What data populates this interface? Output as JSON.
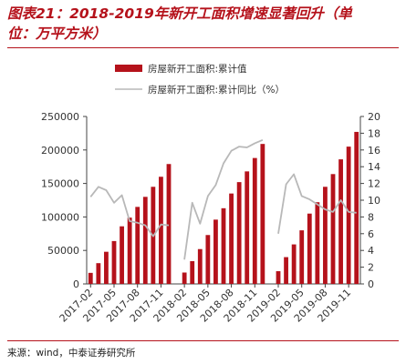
{
  "header": {
    "title_line1": "图表21：2018-2019年新开工面积增速显著回升（单",
    "title_line2": "位：万平方米）"
  },
  "footer": {
    "source": "来源：wind，中泰证券研究所"
  },
  "colors": {
    "bar": "#b5121b",
    "line": "#b8b8b8",
    "title": "#b5121b",
    "axis": "#444444"
  },
  "chart_data": {
    "type": "bar",
    "legend": [
      {
        "name": "房屋新开工面积:累计值",
        "style": "bar"
      },
      {
        "name": "房屋新开工面积:累计同比（%）",
        "style": "line"
      }
    ],
    "legend_placement": "top",
    "x_tick_labels": [
      "2017-02",
      "2017-05",
      "2017-08",
      "2017-11",
      "2018-02",
      "2018-05",
      "2018-08",
      "2018-11",
      "2019-02",
      "2019-05",
      "2019-08",
      "2019-11"
    ],
    "x": [
      "2017-02",
      "2017-03",
      "2017-04",
      "2017-05",
      "2017-06",
      "2017-07",
      "2017-08",
      "2017-09",
      "2017-10",
      "2017-11",
      "2017-12",
      "2018-01",
      "2018-02",
      "2018-03",
      "2018-04",
      "2018-05",
      "2018-06",
      "2018-07",
      "2018-08",
      "2018-09",
      "2018-10",
      "2018-11",
      "2018-12",
      "2019-01",
      "2019-02",
      "2019-03",
      "2019-04",
      "2019-05",
      "2019-06",
      "2019-07",
      "2019-08",
      "2019-09",
      "2019-10",
      "2019-11",
      "2019-12"
    ],
    "series": [
      {
        "name": "房屋新开工面积:累计值",
        "type": "bar",
        "axis": "left",
        "values": [
          16500,
          31000,
          48000,
          64000,
          86000,
          99000,
          115000,
          130000,
          145000,
          160000,
          179000,
          null,
          17000,
          34000,
          52000,
          73000,
          96000,
          113000,
          135000,
          152000,
          168000,
          188000,
          209000,
          null,
          19000,
          40000,
          59000,
          80000,
          105000,
          122000,
          145000,
          164000,
          186000,
          205000,
          227000
        ]
      },
      {
        "name": "房屋新开工面积:累计同比（%）",
        "type": "line",
        "axis": "right",
        "values": [
          10.4,
          11.6,
          11.2,
          9.7,
          10.6,
          7.5,
          7.3,
          7.0,
          5.7,
          7.1,
          7.0,
          null,
          2.9,
          9.7,
          7.2,
          10.5,
          11.8,
          14.4,
          15.9,
          16.4,
          16.3,
          16.8,
          17.2,
          null,
          6.0,
          11.9,
          13.1,
          10.5,
          10.1,
          9.5,
          8.9,
          8.6,
          10.0,
          8.6,
          8.5
        ]
      }
    ],
    "y_left": {
      "range": [
        0,
        250000
      ],
      "ticks": [
        0,
        50000,
        100000,
        150000,
        200000,
        250000
      ]
    },
    "y_right": {
      "range": [
        0,
        20
      ],
      "ticks": [
        0,
        2,
        4,
        6,
        8,
        10,
        12,
        14,
        16,
        18,
        20
      ]
    },
    "grid": false
  }
}
